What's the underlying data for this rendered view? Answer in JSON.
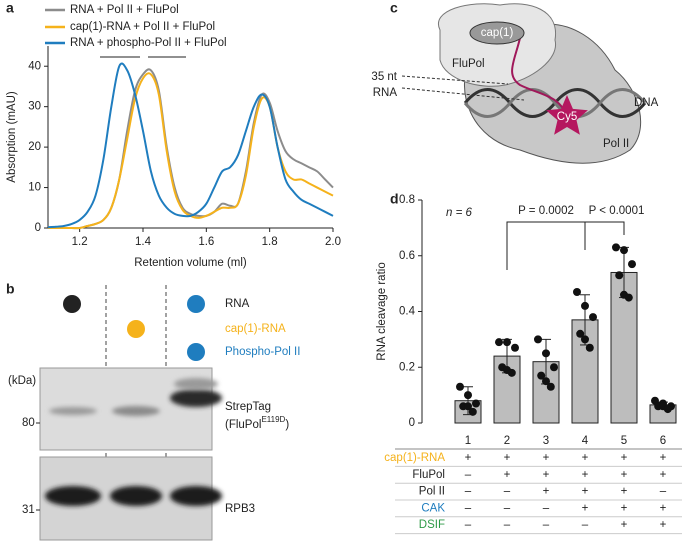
{
  "chart_data": [
    {
      "type": "line",
      "panel": "a",
      "xlabel": "Retention volume (ml)",
      "ylabel": "Absorption (mAU)",
      "x": [
        1.1,
        1.125,
        1.15,
        1.175,
        1.2,
        1.225,
        1.25,
        1.275,
        1.3,
        1.325,
        1.35,
        1.375,
        1.4,
        1.425,
        1.45,
        1.475,
        1.5,
        1.525,
        1.55,
        1.575,
        1.6,
        1.625,
        1.65,
        1.675,
        1.7,
        1.725,
        1.75,
        1.775,
        1.8,
        1.825,
        1.85,
        1.875,
        1.9,
        1.925,
        1.95,
        1.975,
        2.0
      ],
      "series": [
        {
          "name": "RNA + Pol II + FluPol",
          "color": "#8c8c8c",
          "values": [
            0,
            0,
            0,
            0,
            0,
            0.5,
            1,
            2,
            5,
            12,
            24,
            34,
            38,
            39,
            34,
            20,
            10,
            5,
            3.5,
            3,
            3,
            4,
            6,
            5.5,
            6,
            14,
            26,
            33,
            31,
            24,
            19,
            17,
            16,
            15,
            14,
            12,
            10
          ]
        },
        {
          "name": "cap(1)-RNA + Pol II + FluPol",
          "color": "#f5b21b",
          "values": [
            0,
            0,
            0,
            0,
            0,
            0.5,
            1,
            2,
            5,
            12,
            22,
            32,
            37,
            38,
            33,
            19,
            9,
            4.5,
            3,
            2.5,
            3,
            4,
            5,
            5,
            6,
            13,
            25,
            32,
            30,
            20,
            14,
            12,
            12,
            11,
            10,
            9,
            8
          ]
        },
        {
          "name": "RNA + phospho-Pol II + FluPol",
          "color": "#1f7dbf",
          "values": [
            0.2,
            0.3,
            0.5,
            1,
            2,
            4,
            8,
            17,
            30,
            40,
            39,
            33,
            24,
            14,
            8,
            5,
            3.5,
            3,
            3,
            4,
            6,
            10,
            14,
            15,
            18,
            24,
            30,
            33,
            30,
            20,
            12,
            9,
            7,
            6,
            5,
            4,
            3
          ]
        }
      ],
      "xlim": [
        1.1,
        2.0
      ],
      "xticks": [
        1.2,
        1.4,
        1.6,
        1.8,
        {
          "value": 2.0,
          "label": "2.0"
        }
      ],
      "ylim": [
        0,
        45
      ],
      "yticks": [
        0,
        10,
        20,
        30,
        40
      ]
    },
    {
      "type": "bar",
      "panel": "d",
      "ylabel": "RNA cleavage ratio",
      "categories": [
        "1",
        "2",
        "3",
        "4",
        "5",
        "6"
      ],
      "values": [
        0.08,
        0.24,
        0.22,
        0.37,
        0.54,
        0.065
      ],
      "errors": [
        0.05,
        0.06,
        0.08,
        0.09,
        0.09,
        0.01
      ],
      "points": [
        [
          0.13,
          0.1,
          0.07,
          0.06,
          0.06,
          0.04
        ],
        [
          0.29,
          0.29,
          0.27,
          0.2,
          0.19,
          0.18
        ],
        [
          0.3,
          0.25,
          0.2,
          0.17,
          0.15,
          0.13
        ],
        [
          0.47,
          0.42,
          0.38,
          0.32,
          0.3,
          0.27
        ],
        [
          0.63,
          0.62,
          0.57,
          0.53,
          0.46,
          0.45
        ],
        [
          0.08,
          0.07,
          0.06,
          0.06,
          0.06,
          0.05
        ]
      ],
      "color": "#bdbdbd",
      "ylim": [
        0,
        0.8
      ],
      "yticks": [
        0,
        0.2,
        0.4,
        0.6,
        0.8
      ],
      "annotations": [
        "n = 6",
        "P = 0.0002",
        "P < 0.0001"
      ],
      "table": [
        {
          "label": "cap(1)-RNA",
          "color": "#f5b21b",
          "cells": [
            "+",
            "+",
            "+",
            "+",
            "+",
            "+"
          ]
        },
        {
          "label": "FluPol",
          "color": "#222222",
          "cells": [
            "–",
            "+",
            "+",
            "+",
            "+",
            "+"
          ]
        },
        {
          "label": "Pol II",
          "color": "#222222",
          "cells": [
            "–",
            "–",
            "+",
            "+",
            "+",
            "–"
          ]
        },
        {
          "label": "CAK",
          "color": "#1f7dbf",
          "cells": [
            "–",
            "–",
            "–",
            "+",
            "+",
            "+"
          ]
        },
        {
          "label": "DSIF",
          "color": "#2e9a47",
          "cells": [
            "–",
            "–",
            "–",
            "–",
            "+",
            "+"
          ]
        }
      ]
    }
  ],
  "panel_b": {
    "label": "b",
    "legend": [
      {
        "name": "RNA",
        "color": "#222222"
      },
      {
        "name": "cap(1)-RNA",
        "color": "#f5b21b"
      },
      {
        "name": "Phospho-Pol II",
        "color": "#1f7dbf"
      }
    ],
    "kda": "(kDa)",
    "markers": [
      80,
      31
    ],
    "strep": "StrepTag",
    "strep_sub": "(FluPol",
    "strep_sup": "E119D",
    "strep_close": ")",
    "rpb3": "RPB3"
  },
  "panel_c": {
    "label": "c",
    "cap": "cap(1)",
    "flupol": "FluPol",
    "rna_length": "35 nt",
    "rna": "RNA",
    "dye": "Cy5",
    "dna": "DNA",
    "pol": "Pol II"
  }
}
